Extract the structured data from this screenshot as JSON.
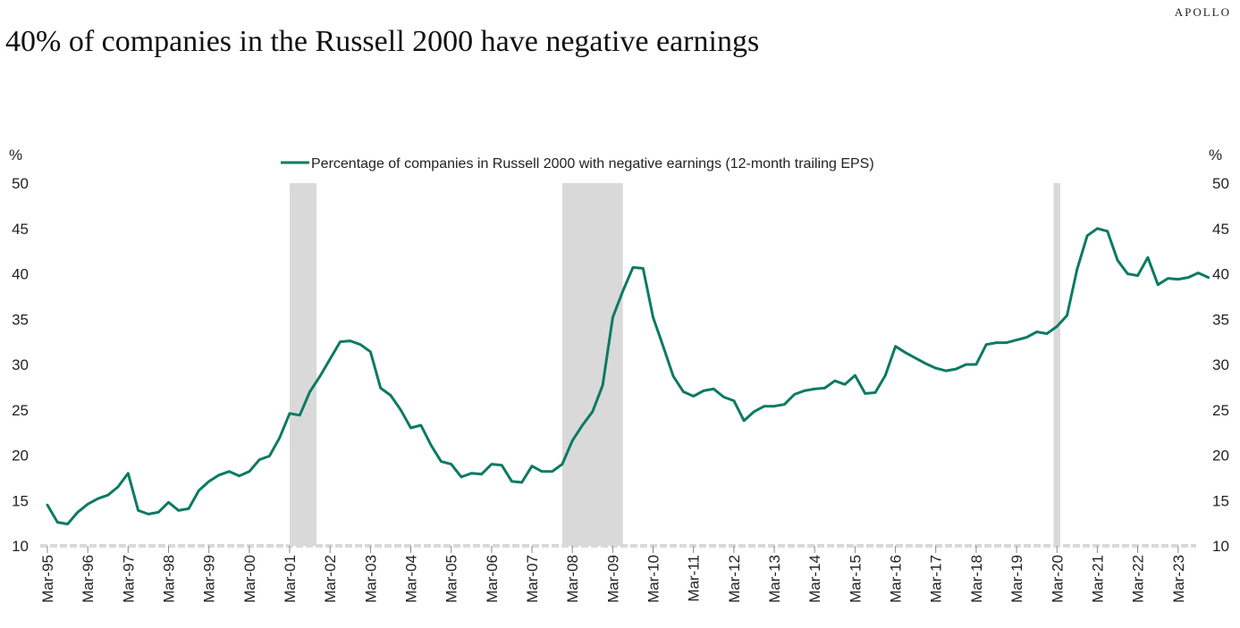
{
  "brand": "APOLLO",
  "title": "40% of companies in the Russell 2000 have negative earnings",
  "colors": {
    "line": "#0c7a63",
    "recession": "#d9d9d9",
    "baseline": "#d9d9d9"
  },
  "chart_data": {
    "type": "line",
    "ylabel_left": "%",
    "ylabel_right": "%",
    "ylim": [
      10,
      50
    ],
    "yticks": [
      10,
      15,
      20,
      25,
      30,
      35,
      40,
      45,
      50
    ],
    "grid": false,
    "legend_position": "top-center",
    "x_tick_labels": [
      "Mar-95",
      "Mar-96",
      "Mar-97",
      "Mar-98",
      "Mar-99",
      "Mar-00",
      "Mar-01",
      "Mar-02",
      "Mar-03",
      "Mar-04",
      "Mar-05",
      "Mar-06",
      "Mar-07",
      "Mar-08",
      "Mar-09",
      "Mar-10",
      "Mar-11",
      "Mar-12",
      "Mar-13",
      "Mar-14",
      "Mar-15",
      "Mar-16",
      "Mar-17",
      "Mar-18",
      "Mar-19",
      "Mar-20",
      "Mar-21",
      "Mar-22",
      "Mar-23"
    ],
    "recessions": [
      {
        "start": "Mar-01",
        "end": "Nov-01"
      },
      {
        "start": "Dec-07",
        "end": "Jun-09"
      },
      {
        "start": "Feb-20",
        "end": "Apr-20"
      }
    ],
    "series": [
      {
        "name": "Percentage of companies in Russell 2000 with negative earnings (12-month trailing EPS)",
        "frequency": "quarterly",
        "start": "Mar-95",
        "values": [
          14.5,
          12.6,
          12.4,
          13.7,
          14.6,
          15.2,
          15.6,
          16.5,
          18.0,
          13.9,
          13.5,
          13.7,
          14.8,
          13.9,
          14.1,
          16.1,
          17.1,
          17.8,
          18.2,
          17.7,
          18.2,
          19.5,
          19.9,
          21.9,
          24.6,
          24.4,
          27.0,
          28.7,
          30.6,
          32.5,
          32.6,
          32.2,
          31.4,
          27.4,
          26.6,
          25.0,
          23.0,
          23.3,
          21.1,
          19.3,
          19.0,
          17.6,
          18.0,
          17.9,
          19.0,
          18.9,
          17.1,
          17.0,
          18.8,
          18.2,
          18.2,
          19.0,
          21.6,
          23.3,
          24.8,
          27.7,
          35.2,
          38.1,
          40.7,
          40.6,
          35.2,
          32.0,
          28.7,
          27.0,
          26.5,
          27.1,
          27.3,
          26.4,
          26.0,
          23.8,
          24.8,
          25.4,
          25.4,
          25.6,
          26.7,
          27.1,
          27.3,
          27.4,
          28.2,
          27.8,
          28.8,
          26.8,
          26.9,
          28.8,
          32.0,
          31.3,
          30.7,
          30.1,
          29.6,
          29.3,
          29.5,
          30.0,
          30.0,
          32.2,
          32.4,
          32.4,
          32.7,
          33.0,
          33.6,
          33.4,
          34.2,
          35.4,
          40.5,
          44.2,
          45.0,
          44.7,
          41.5,
          40.0,
          39.8,
          41.8,
          38.8,
          39.5,
          39.4,
          39.6,
          40.1,
          39.6
        ]
      }
    ]
  }
}
